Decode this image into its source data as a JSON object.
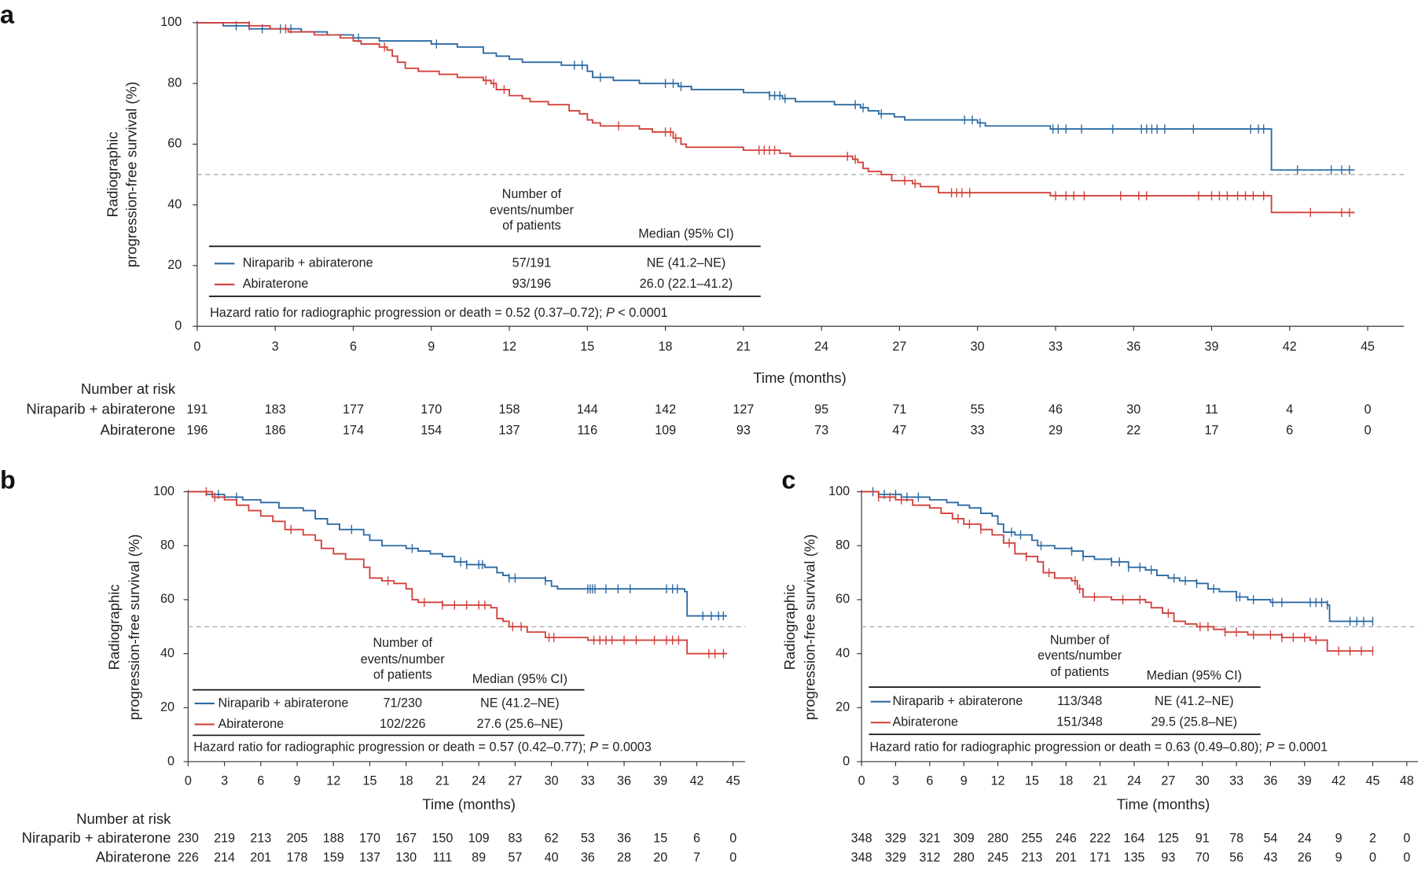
{
  "chart_data": [
    {
      "type": "line",
      "step": true,
      "panel_label": "a",
      "xlabel": "Time (months)",
      "ylabel": [
        "Radiographic",
        "progression-free survival (%)"
      ],
      "xlim": [
        0,
        46.4
      ],
      "xticks": [
        0,
        3,
        6,
        9,
        12,
        15,
        18,
        21,
        24,
        27,
        30,
        33,
        36,
        39,
        42,
        45
      ],
      "ylim": [
        0,
        100
      ],
      "yticks": [
        0,
        20,
        40,
        60,
        80,
        100
      ],
      "reference_y": 50,
      "events_header": [
        "Number of",
        "events/number",
        "of patients"
      ],
      "median_header": "Median (95% CI)",
      "hazard_ratio": [
        "Hazard ratio for radiographic progression or death = 0.52 (0.37–0.72); ",
        "P",
        " < 0.0001"
      ],
      "at_risk_title": "Number at risk",
      "risk_labels": true,
      "series": [
        {
          "name": "Niraparib + abiraterone",
          "color": "#2c6aa3",
          "events": "57/191",
          "median": "NE (41.2–NE)",
          "x": [
            0,
            1,
            2,
            4,
            5,
            6,
            7,
            9,
            10,
            11,
            11.5,
            12,
            12.5,
            14,
            15,
            15.2,
            16,
            17,
            18.5,
            19,
            21,
            22,
            22.5,
            23,
            24.5,
            25.5,
            25.8,
            26.2,
            26.8,
            27.2,
            30,
            30.3,
            32.8,
            41.3,
            44.5
          ],
          "values": [
            100,
            99,
            98,
            97,
            96,
            95,
            94,
            93,
            92,
            90,
            89,
            88,
            87,
            86,
            84,
            82,
            81,
            80,
            79,
            78,
            77,
            76,
            75,
            74,
            73,
            72,
            71,
            70,
            69,
            68,
            67,
            66,
            65,
            51.5,
            51.5
          ],
          "censored_x": [
            1.5,
            2.5,
            3.2,
            3.6,
            6.2,
            9.2,
            14.5,
            14.8,
            15.5,
            18,
            18.3,
            18.6,
            22,
            22.2,
            22.4,
            22.6,
            25.3,
            25.6,
            26.3,
            29.5,
            29.8,
            30.1,
            32.9,
            33.1,
            33.4,
            34,
            35.2,
            36.3,
            36.5,
            36.7,
            36.9,
            37.2,
            38.3,
            40.5,
            40.8,
            41,
            42.3,
            43.6,
            44,
            44.3
          ],
          "at_risk": [
            191,
            183,
            177,
            170,
            158,
            144,
            142,
            127,
            95,
            71,
            55,
            46,
            30,
            11,
            4,
            0
          ]
        },
        {
          "name": "Abiraterone",
          "color": "#d2413a",
          "events": "93/196",
          "median": "26.0 (22.1–41.2)",
          "x": [
            0,
            2,
            2.8,
            3.5,
            4.5,
            5.5,
            6,
            6.3,
            7,
            7.3,
            7.5,
            7.7,
            8,
            8.5,
            9.3,
            10,
            11,
            11.3,
            11.5,
            12,
            12.5,
            12.8,
            13.5,
            14.3,
            14.7,
            15,
            15.2,
            15.5,
            17,
            17.5,
            18.3,
            18.6,
            18.8,
            21,
            22.4,
            22.8,
            25.2,
            25.4,
            25.6,
            25.8,
            26.3,
            26.7,
            27.5,
            27.8,
            28.5,
            32.8,
            41.3,
            44.5
          ],
          "values": [
            100,
            99,
            98,
            97,
            96,
            95,
            94,
            93,
            92,
            91,
            89,
            87,
            85,
            84,
            83,
            82,
            81,
            80,
            78,
            76,
            75,
            74,
            73,
            71,
            70,
            68,
            67,
            66,
            65,
            64,
            62,
            60,
            59,
            58,
            57,
            56,
            55,
            54,
            52,
            51,
            50,
            48,
            47,
            46,
            44,
            43,
            37.5,
            37.5
          ],
          "censored_x": [
            2,
            3.4,
            7.2,
            11.1,
            11.4,
            11.8,
            16.2,
            18,
            18.2,
            18.4,
            21.6,
            21.8,
            22,
            22.2,
            25,
            25.3,
            27.2,
            27.6,
            29,
            29.2,
            29.4,
            29.7,
            33,
            33.4,
            33.7,
            34.1,
            35.5,
            36.2,
            36.5,
            38.5,
            39,
            39.3,
            39.6,
            40,
            40.3,
            40.6,
            41,
            42.8,
            44,
            44.3
          ],
          "at_risk": [
            196,
            186,
            174,
            154,
            137,
            116,
            109,
            93,
            73,
            47,
            33,
            29,
            22,
            17,
            6,
            0
          ]
        }
      ]
    },
    {
      "type": "line",
      "step": true,
      "panel_label": "b",
      "xlabel": "Time (months)",
      "ylabel": [
        "Radiographic",
        "progression-free survival (%)"
      ],
      "xlim": [
        0,
        46
      ],
      "xticks": [
        0,
        3,
        6,
        9,
        12,
        15,
        18,
        21,
        24,
        27,
        30,
        33,
        36,
        39,
        42,
        45
      ],
      "ylim": [
        0,
        100
      ],
      "yticks": [
        0,
        20,
        40,
        60,
        80,
        100
      ],
      "reference_y": 50,
      "events_header": [
        "Number of",
        "events/number",
        "of patients"
      ],
      "median_header": "Median (95% CI)",
      "hazard_ratio": [
        "Hazard ratio for radiographic progression or death = 0.57 (0.42–0.77); ",
        "P",
        " = 0.0003"
      ],
      "at_risk_title": "Number at risk",
      "risk_labels": true,
      "series": [
        {
          "name": "Niraparib + abiraterone",
          "color": "#2c6aa3",
          "events": "71/230",
          "median": "NE (41.2–NE)",
          "x": [
            0,
            1.5,
            3,
            4.5,
            6,
            7.5,
            9.5,
            10.5,
            11.5,
            12.5,
            14.5,
            15,
            16,
            18,
            19,
            20,
            21,
            22,
            23,
            24.5,
            25.5,
            26,
            26.5,
            29.5,
            30,
            30.5,
            41,
            41.2,
            44.5
          ],
          "values": [
            100,
            99,
            98,
            97,
            96,
            94,
            93,
            90,
            88,
            86,
            84,
            82,
            80,
            79,
            78,
            77,
            76,
            74,
            73,
            72,
            70,
            69,
            68,
            67,
            65,
            64,
            63,
            54,
            54
          ],
          "censored_x": [
            2.5,
            4,
            13.5,
            18.5,
            22.5,
            23,
            24,
            24.3,
            26.5,
            27,
            29.5,
            33,
            33.2,
            33.4,
            33.6,
            34.5,
            35.5,
            36.5,
            39.5,
            40,
            40.4,
            42.5,
            43.2,
            43.8,
            44.2
          ],
          "at_risk": [
            230,
            219,
            213,
            205,
            188,
            170,
            167,
            150,
            109,
            83,
            62,
            53,
            36,
            15,
            6,
            0
          ]
        },
        {
          "name": "Abiraterone",
          "color": "#d2413a",
          "events": "102/226",
          "median": "27.6 (25.6–NE)",
          "x": [
            0,
            2,
            3,
            4,
            5,
            6,
            7,
            8,
            9.5,
            10.5,
            11,
            12,
            13,
            14.5,
            15,
            16,
            17,
            18,
            18.5,
            19,
            21,
            25,
            25.5,
            26,
            26.5,
            28,
            29.5,
            33,
            41.2,
            44.5
          ],
          "values": [
            100,
            98,
            97,
            95,
            93,
            91,
            89,
            86,
            84,
            82,
            79,
            77,
            75,
            72,
            68,
            67,
            66,
            64,
            60,
            59,
            58,
            57,
            53,
            52,
            50,
            48,
            46,
            45,
            40,
            40
          ],
          "censored_x": [
            1.5,
            2.2,
            8.5,
            16.5,
            19.5,
            21,
            22,
            23,
            24,
            24.5,
            26.8,
            27.5,
            29.8,
            30.2,
            33.5,
            34,
            34.5,
            35,
            36,
            37,
            38.5,
            39.5,
            40,
            40.5,
            43,
            43.5,
            44.2
          ],
          "at_risk": [
            226,
            214,
            201,
            178,
            159,
            137,
            130,
            111,
            89,
            57,
            40,
            36,
            28,
            20,
            7,
            0
          ]
        }
      ]
    },
    {
      "type": "line",
      "step": true,
      "panel_label": "c",
      "xlabel": "Time (months)",
      "ylabel": [
        "Radiographic",
        "progression-free survival (%)"
      ],
      "xlim": [
        0,
        49
      ],
      "xticks": [
        0,
        3,
        6,
        9,
        12,
        15,
        18,
        21,
        24,
        27,
        30,
        33,
        36,
        39,
        42,
        45,
        48
      ],
      "ylim": [
        0,
        100
      ],
      "yticks": [
        0,
        20,
        40,
        60,
        80,
        100
      ],
      "reference_y": 50,
      "events_header": [
        "Number of",
        "events/number",
        "of patients"
      ],
      "median_header": "Median (95% CI)",
      "hazard_ratio": [
        "Hazard ratio for radiographic progression or death = 0.63 (0.49–0.80); ",
        "P",
        " = 0.0001"
      ],
      "risk_labels": false,
      "series": [
        {
          "name": "Niraparib + abiraterone",
          "color": "#2c6aa3",
          "events": "113/348",
          "median": "NE (41.2–NE)",
          "x": [
            0,
            1.5,
            3.5,
            6,
            7.5,
            8.5,
            9.5,
            10.5,
            11.5,
            12,
            12.5,
            13.5,
            15,
            15.5,
            17,
            18.5,
            19.5,
            20.5,
            22,
            23.5,
            25,
            26,
            27,
            28,
            29.5,
            30.5,
            31.5,
            33,
            34,
            36,
            41,
            41.2,
            45
          ],
          "values": [
            100,
            99,
            98,
            97,
            96,
            95,
            94,
            92,
            91,
            88,
            85,
            84,
            82,
            80,
            79,
            78,
            76,
            75,
            74,
            72,
            71,
            69,
            68,
            67,
            66,
            64,
            63,
            61,
            60,
            59,
            58,
            52,
            52
          ],
          "censored_x": [
            1,
            2,
            3,
            4,
            5,
            13.2,
            14,
            15.8,
            18.5,
            19.5,
            22,
            22.7,
            23.5,
            24.5,
            25.5,
            27.5,
            28.5,
            29.5,
            31,
            33,
            33.3,
            34.5,
            36.2,
            37,
            39.5,
            40,
            40.5,
            41,
            43,
            43.6,
            44.2,
            45
          ],
          "at_risk": [
            348,
            329,
            321,
            309,
            280,
            255,
            246,
            222,
            164,
            125,
            91,
            78,
            54,
            24,
            9,
            2,
            0
          ]
        },
        {
          "name": "Abiraterone",
          "color": "#d2413a",
          "events": "151/348",
          "median": "29.5 (25.8–NE)",
          "x": [
            0,
            1.5,
            3,
            4.5,
            6,
            7,
            8,
            9,
            10.5,
            11.5,
            12.5,
            13.5,
            14.5,
            15.5,
            16,
            17,
            18.5,
            19,
            19.5,
            22,
            25,
            25.5,
            26.5,
            27.5,
            28.5,
            29.5,
            31,
            32,
            34,
            37,
            39.5,
            41,
            45
          ],
          "values": [
            100,
            98,
            97,
            95,
            94,
            92,
            90,
            88,
            86,
            84,
            81,
            77,
            76,
            74,
            70,
            68,
            67,
            64,
            61,
            60,
            59,
            57,
            55,
            52,
            51,
            50,
            49,
            48,
            47,
            46,
            45,
            41,
            41
          ],
          "censored_x": [
            1.5,
            2.5,
            3.5,
            8.5,
            9.5,
            10.5,
            13,
            14.5,
            16.5,
            18.8,
            19.2,
            20.5,
            23,
            24.5,
            27,
            29.8,
            30.5,
            32,
            33,
            34.5,
            36,
            37,
            38,
            39,
            40,
            42,
            43,
            44,
            45
          ],
          "at_risk": [
            348,
            329,
            312,
            280,
            245,
            213,
            201,
            171,
            135,
            93,
            70,
            56,
            43,
            26,
            9,
            0,
            0
          ]
        }
      ]
    }
  ]
}
